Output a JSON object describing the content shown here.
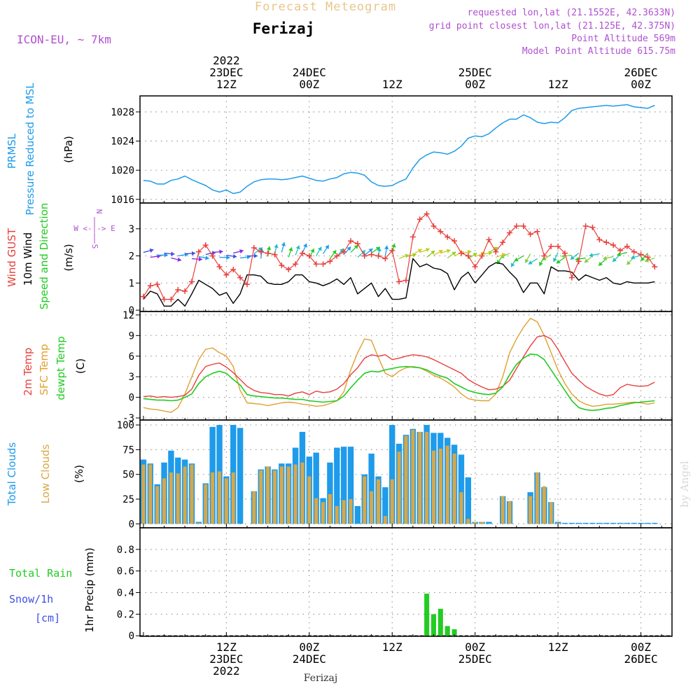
{
  "header": {
    "product_title": "Forecast Meteogram",
    "location": "Ferizaj",
    "model": "ICON-EU, ~ 7km",
    "requested": "requested lon,lat (21.1552E, 42.3633N)",
    "grid_point": "grid point closest lon,lat (21.125E, 42.375N)",
    "point_altitude": "Point Altitude 569m",
    "model_altitude": "Model Point Altitude 615.75m",
    "footer_location": "Ferizaj",
    "watermark": "by Angel"
  },
  "colors": {
    "prmsl": "#1e9bea",
    "gust": "#e8403c",
    "wind10m": "#000000",
    "t2m": "#e8403c",
    "sfc": "#e0a030",
    "dewpt": "#22cc22",
    "total_clouds": "#1e9bea",
    "low_clouds": "#d8a848",
    "rain": "#22cc22",
    "snow": "#3f4fe8",
    "purple": "#b050d0",
    "title": "#e8c68a"
  },
  "time_axis": {
    "top_labels": [
      {
        "t": 12,
        "lines": [
          "2022",
          "23DEC",
          "12Z"
        ]
      },
      {
        "t": 24,
        "lines": [
          "24DEC",
          "00Z"
        ]
      },
      {
        "t": 36,
        "lines": [
          "12Z"
        ]
      },
      {
        "t": 48,
        "lines": [
          "25DEC",
          "00Z"
        ]
      },
      {
        "t": 60,
        "lines": [
          "12Z"
        ]
      },
      {
        "t": 72,
        "lines": [
          "26DEC",
          "00Z"
        ]
      }
    ],
    "bottom_labels": [
      {
        "t": 12,
        "lines": [
          "12Z",
          "23DEC",
          "2022"
        ]
      },
      {
        "t": 24,
        "lines": [
          "00Z",
          "24DEC"
        ]
      },
      {
        "t": 36,
        "lines": [
          "12Z"
        ]
      },
      {
        "t": 48,
        "lines": [
          "00Z",
          "25DEC"
        ]
      },
      {
        "t": 60,
        "lines": [
          "12Z"
        ]
      },
      {
        "t": 72,
        "lines": [
          "00Z",
          "26DEC"
        ]
      }
    ]
  },
  "chart_data": [
    {
      "type": "line",
      "panel": "pressure",
      "y_title_lines": [
        "PRMSL",
        "Pressure Reduced to MSL"
      ],
      "unit": "(hPa)",
      "ylim": [
        1015.5,
        1030.2
      ],
      "yticks": [
        1016,
        1020,
        1024,
        1028
      ],
      "series": [
        {
          "name": "PRMSL",
          "values": [
            1018.6,
            1018.5,
            1018.1,
            1018.1,
            1018.6,
            1018.8,
            1019.2,
            1018.7,
            1018.3,
            1017.9,
            1017.3,
            1017.0,
            1017.3,
            1016.8,
            1017.0,
            1017.8,
            1018.4,
            1018.7,
            1018.8,
            1018.8,
            1018.7,
            1018.8,
            1019.0,
            1019.2,
            1018.9,
            1018.6,
            1018.5,
            1018.8,
            1019.0,
            1019.5,
            1019.7,
            1019.6,
            1019.3,
            1018.4,
            1017.9,
            1017.8,
            1017.9,
            1018.4,
            1018.8,
            1020.3,
            1021.5,
            1022.1,
            1022.5,
            1022.4,
            1022.2,
            1022.6,
            1023.3,
            1024.4,
            1024.7,
            1024.6,
            1025.0,
            1025.8,
            1026.5,
            1027.0,
            1027.0,
            1027.6,
            1027.2,
            1026.6,
            1026.4,
            1026.6,
            1026.5,
            1027.2,
            1028.2,
            1028.5,
            1028.6,
            1028.7,
            1028.8,
            1028.9,
            1028.8,
            1028.9,
            1029.0,
            1028.7,
            1028.6,
            1028.5,
            1028.9
          ]
        }
      ]
    },
    {
      "type": "line",
      "panel": "wind",
      "y_title_lines": [
        "Wind GUST",
        "10m Wind",
        "Speed and Direction"
      ],
      "unit": "(m/s)",
      "compass": [
        "N",
        "W <-|-> E",
        "S"
      ],
      "ylim": [
        -0.05,
        3.95
      ],
      "yticks": [
        0,
        1,
        2,
        3
      ],
      "series": [
        {
          "name": "Wind GUST",
          "values": [
            0.5,
            0.9,
            0.95,
            0.4,
            0.4,
            0.75,
            0.7,
            1.05,
            2.15,
            2.4,
            2.0,
            1.6,
            1.3,
            1.5,
            1.2,
            0.95,
            2.3,
            2.15,
            2.1,
            2.05,
            1.65,
            1.5,
            1.7,
            2.1,
            2.0,
            1.7,
            1.7,
            1.8,
            2.0,
            2.15,
            2.55,
            2.45,
            2.0,
            2.05,
            2.0,
            1.9,
            2.2,
            1.05,
            1.1,
            2.7,
            3.35,
            3.55,
            3.1,
            2.9,
            2.7,
            2.55,
            2.1,
            2.0,
            1.6,
            2.0,
            2.6,
            2.15,
            2.5,
            2.85,
            3.1,
            3.1,
            2.8,
            2.9,
            2.0,
            2.35,
            2.35,
            2.1,
            1.2,
            1.8,
            3.1,
            3.05,
            2.6,
            2.5,
            2.4,
            2.2,
            2.35,
            2.15,
            2.05,
            1.95,
            1.6
          ]
        },
        {
          "name": "10m Wind",
          "values": [
            0.4,
            0.7,
            0.6,
            0.15,
            0.15,
            0.4,
            0.15,
            0.6,
            1.1,
            0.95,
            0.8,
            0.55,
            0.65,
            0.25,
            0.6,
            1.3,
            1.3,
            1.25,
            1.0,
            0.95,
            0.95,
            1.05,
            1.3,
            1.3,
            1.05,
            1.0,
            0.9,
            1.0,
            1.15,
            0.95,
            1.2,
            0.6,
            0.8,
            1.0,
            0.5,
            0.8,
            0.4,
            0.4,
            0.45,
            1.9,
            1.6,
            1.7,
            1.55,
            1.5,
            1.35,
            0.75,
            1.2,
            1.4,
            1.0,
            1.3,
            1.6,
            1.75,
            1.7,
            1.4,
            1.15,
            0.65,
            1.0,
            1.0,
            0.6,
            1.6,
            1.45,
            1.45,
            1.4,
            1.1,
            1.3,
            1.2,
            1.1,
            1.2,
            1.0,
            0.95,
            1.05,
            1.0,
            1.0,
            1.0,
            1.05
          ]
        }
      ],
      "arrow_rows": [
        {
          "t_from": 0,
          "t_to": 16,
          "direction": "from west, mixed",
          "colors": [
            "#3f4fe8",
            "#8a2be2",
            "#1e9bea"
          ]
        },
        {
          "t_from": 16,
          "t_to": 37,
          "direction": "from south/southwest",
          "colors": [
            "#22cc22",
            "#20c0c0",
            "#1e9bea"
          ]
        },
        {
          "t_from": 37,
          "t_to": 52,
          "direction": "from southwest",
          "colors": [
            "#e0c020",
            "#b8d020",
            "#90d020"
          ]
        },
        {
          "t_from": 52,
          "t_to": 75,
          "direction": "from northeast",
          "colors": [
            "#20c0c0",
            "#22cc22",
            "#80d040"
          ]
        }
      ]
    },
    {
      "type": "line",
      "panel": "temperature",
      "y_title_lines": [
        "2m Temp",
        "SFC Temp",
        "dewpt Temp"
      ],
      "unit": "(C)",
      "ylim": [
        -3.3,
        12.5
      ],
      "yticks": [
        -3,
        0,
        3,
        6,
        9,
        12
      ],
      "series": [
        {
          "name": "2m Temp",
          "values": [
            0.1,
            0.2,
            0.0,
            0.1,
            0.0,
            0.1,
            0.3,
            1.2,
            3.2,
            4.5,
            4.8,
            5.0,
            4.4,
            3.6,
            2.6,
            1.6,
            1.0,
            0.7,
            0.6,
            0.4,
            0.4,
            0.2,
            0.6,
            0.8,
            0.4,
            0.9,
            0.7,
            0.8,
            1.2,
            2.0,
            3.3,
            4.3,
            5.7,
            6.2,
            6.0,
            6.2,
            5.5,
            5.7,
            6.0,
            6.2,
            6.1,
            5.9,
            5.5,
            5.0,
            4.5,
            4.0,
            3.5,
            2.6,
            2.0,
            1.5,
            1.1,
            1.2,
            1.6,
            2.5,
            4.2,
            5.9,
            7.5,
            8.8,
            9.0,
            8.5,
            7.0,
            5.2,
            3.5,
            2.5,
            1.6,
            1.0,
            0.5,
            0.2,
            0.4,
            1.4,
            1.9,
            1.7,
            1.6,
            1.7,
            2.2
          ]
        },
        {
          "name": "SFC Temp",
          "values": [
            -1.5,
            -1.7,
            -1.8,
            -2.0,
            -2.2,
            -1.5,
            0.5,
            3.0,
            5.5,
            7.0,
            7.2,
            6.5,
            6.0,
            4.5,
            1.0,
            -0.8,
            -0.9,
            -1.0,
            -1.2,
            -1.0,
            -0.8,
            -0.7,
            -0.8,
            -1.0,
            -1.1,
            -1.3,
            -1.2,
            -0.9,
            -0.5,
            0.8,
            4.0,
            6.5,
            8.5,
            8.3,
            5.8,
            3.5,
            3.0,
            3.8,
            4.3,
            4.5,
            4.3,
            3.8,
            3.2,
            2.8,
            2.2,
            1.5,
            0.5,
            -0.2,
            -0.4,
            -0.5,
            -0.5,
            0.5,
            3.0,
            6.5,
            8.5,
            10.2,
            11.5,
            11.0,
            9.0,
            6.5,
            4.0,
            2.0,
            0.5,
            -0.5,
            -1.0,
            -1.3,
            -1.2,
            -1.0,
            -1.0,
            -0.9,
            -0.8,
            -0.7,
            -0.8,
            -1.0,
            -0.8
          ]
        },
        {
          "name": "dewpt Temp",
          "values": [
            -0.2,
            -0.3,
            -0.4,
            -0.4,
            -0.5,
            -0.4,
            0.0,
            0.5,
            2.0,
            3.0,
            3.5,
            3.8,
            3.5,
            2.6,
            1.8,
            0.4,
            0.2,
            0.1,
            0.0,
            -0.1,
            -0.1,
            -0.2,
            -0.3,
            -0.3,
            -0.5,
            -0.6,
            -0.7,
            -0.6,
            -0.5,
            0.2,
            1.4,
            2.5,
            3.5,
            3.8,
            3.7,
            4.0,
            4.2,
            4.4,
            4.5,
            4.4,
            4.3,
            4.0,
            3.5,
            3.1,
            2.8,
            2.0,
            1.5,
            1.0,
            0.7,
            0.5,
            0.4,
            0.6,
            1.5,
            3.3,
            4.8,
            5.7,
            6.3,
            6.2,
            5.5,
            4.0,
            2.5,
            1.0,
            -0.5,
            -1.5,
            -1.8,
            -1.9,
            -1.8,
            -1.6,
            -1.5,
            -1.2,
            -1.0,
            -0.8,
            -0.7,
            -0.6,
            -0.5
          ]
        }
      ]
    },
    {
      "type": "bar",
      "panel": "clouds",
      "y_title_lines": [
        "Total Clouds",
        "Low Clouds"
      ],
      "unit": "(%)",
      "ylim": [
        -4,
        105
      ],
      "yticks": [
        0,
        25,
        50,
        75,
        100
      ],
      "series": [
        {
          "name": "Total Clouds",
          "values": [
            65,
            61,
            40,
            62,
            74,
            67,
            65,
            61,
            2,
            41,
            98,
            100,
            48,
            100,
            97,
            0,
            33,
            55,
            58,
            55,
            61,
            61,
            77,
            93,
            68,
            72,
            26,
            62,
            77,
            78,
            78,
            18,
            50,
            71,
            48,
            37,
            100,
            81,
            90,
            96,
            93,
            100,
            92,
            92,
            87,
            80,
            70,
            47,
            2,
            2,
            2,
            0,
            28,
            23,
            0,
            0,
            32,
            52,
            37,
            22,
            2,
            1,
            1,
            1,
            1,
            1,
            1,
            1,
            1,
            1,
            1,
            1,
            1,
            1,
            1
          ]
        },
        {
          "name": "Low Clouds",
          "values": [
            60,
            60,
            38,
            46,
            52,
            51,
            58,
            60,
            1,
            40,
            52,
            53,
            46,
            52,
            0,
            0,
            33,
            54,
            58,
            54,
            58,
            58,
            60,
            62,
            48,
            26,
            22,
            30,
            18,
            24,
            25,
            0,
            48,
            33,
            45,
            8,
            45,
            73,
            89,
            95,
            93,
            93,
            74,
            76,
            79,
            71,
            32,
            5,
            2,
            2,
            0,
            0,
            28,
            23,
            0,
            0,
            28,
            52,
            38,
            22,
            1,
            0,
            0,
            0,
            0,
            0,
            0,
            0,
            0,
            0,
            0,
            0,
            0,
            0,
            0
          ]
        }
      ]
    },
    {
      "type": "bar",
      "panel": "precip",
      "y_title_lines": [
        "1hr Precip (mm)"
      ],
      "left_labels": [
        "Total  Rain",
        "Snow/1h",
        "[cm]"
      ],
      "ylim": [
        -0.005,
        1.0
      ],
      "yticks": [
        0,
        0.2,
        0.4,
        0.6,
        0.8
      ],
      "series": [
        {
          "name": "Total Rain",
          "values": [
            {
              "t": 41,
              "v": 0.39
            },
            {
              "t": 42,
              "v": 0.2
            },
            {
              "t": 43,
              "v": 0.25
            },
            {
              "t": 44,
              "v": 0.09
            },
            {
              "t": 45,
              "v": 0.06
            }
          ]
        }
      ]
    }
  ]
}
